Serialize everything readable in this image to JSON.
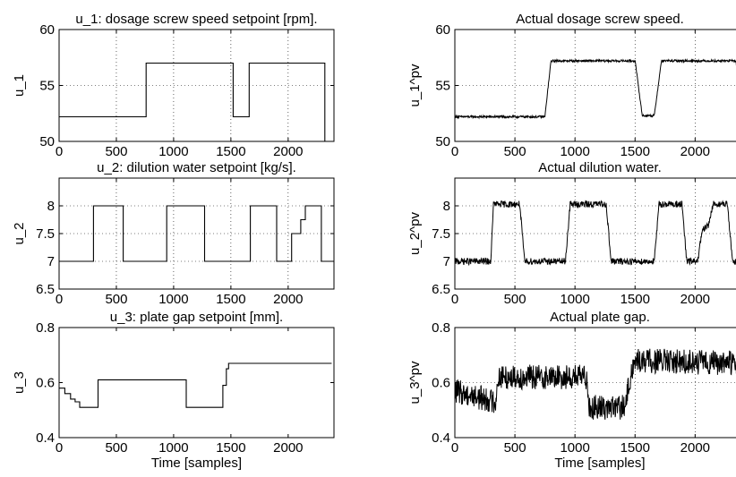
{
  "chart_data": [
    {
      "id": "u1",
      "type": "line",
      "style": "step",
      "title": "u_1: dosage screw speed setpoint [rpm].",
      "xlabel": "",
      "ylabel": "u_1",
      "xlim": [
        0,
        2400
      ],
      "ylim": [
        50,
        60
      ],
      "xticks": [
        0,
        500,
        1000,
        1500,
        2000
      ],
      "yticks": [
        50,
        55,
        60
      ],
      "grid": true,
      "series": [
        {
          "x": [
            0,
            760,
            760,
            1520,
            1520,
            1660,
            1660,
            2320,
            2320
          ],
          "y": [
            52.2,
            52.2,
            57,
            57,
            52.2,
            52.2,
            57,
            57,
            50
          ]
        }
      ]
    },
    {
      "id": "u1pv",
      "type": "line",
      "style": "noisy",
      "title": "Actual dosage screw speed.",
      "xlabel": "",
      "ylabel": "u_1^pv",
      "xlim": [
        0,
        2400
      ],
      "ylim": [
        50,
        60
      ],
      "xticks": [
        0,
        500,
        1000,
        1500,
        2000
      ],
      "yticks": [
        50,
        55,
        60
      ],
      "grid": true,
      "noise": 0.1,
      "series": [
        {
          "x": [
            0,
            750,
            800,
            1500,
            1560,
            1660,
            1720,
            2340,
            2400
          ],
          "y": [
            52.2,
            52.2,
            57.2,
            57.2,
            52.3,
            52.3,
            57.2,
            57.2,
            50.2
          ]
        }
      ]
    },
    {
      "id": "u2",
      "type": "line",
      "style": "step",
      "title": "u_2: dilution water setpoint [kg/s].",
      "xlabel": "",
      "ylabel": "u_2",
      "xlim": [
        0,
        2400
      ],
      "ylim": [
        6.5,
        8.5
      ],
      "xticks": [
        0,
        500,
        1000,
        1500,
        2000
      ],
      "yticks": [
        6.5,
        7,
        7.5,
        8
      ],
      "grid": true,
      "series": [
        {
          "x": [
            0,
            300,
            300,
            560,
            560,
            940,
            940,
            1270,
            1270,
            1670,
            1670,
            1900,
            1900,
            2030,
            2030,
            2110,
            2110,
            2150,
            2150,
            2290,
            2290,
            2400
          ],
          "y": [
            7,
            7,
            8,
            8,
            7,
            7,
            8,
            8,
            7,
            7,
            8,
            8,
            7,
            7,
            7.5,
            7.5,
            7.75,
            7.75,
            8,
            8,
            7,
            7
          ]
        }
      ]
    },
    {
      "id": "u2pv",
      "type": "line",
      "style": "noisy",
      "title": "Actual dilution water.",
      "xlabel": "",
      "ylabel": "u_2^pv",
      "xlim": [
        0,
        2400
      ],
      "ylim": [
        6.5,
        8.5
      ],
      "xticks": [
        0,
        500,
        1000,
        1500,
        2000
      ],
      "yticks": [
        6.5,
        7,
        7.5,
        8
      ],
      "grid": true,
      "noise": 0.06,
      "series": [
        {
          "x": [
            0,
            300,
            320,
            540,
            580,
            920,
            960,
            1260,
            1300,
            1660,
            1700,
            1890,
            1930,
            2020,
            2060,
            2110,
            2150,
            2270,
            2310,
            2400
          ],
          "y": [
            7,
            7,
            8.03,
            8.03,
            7,
            7,
            8.03,
            8.03,
            7,
            7,
            8.03,
            8.03,
            7,
            7,
            7.55,
            7.65,
            8.03,
            8.03,
            7,
            7
          ]
        }
      ]
    },
    {
      "id": "u3",
      "type": "line",
      "style": "step",
      "title": "u_3: plate gap setpoint [mm].",
      "xlabel": "Time [samples]",
      "ylabel": "u_3",
      "xlim": [
        0,
        2400
      ],
      "ylim": [
        0.4,
        0.8
      ],
      "xticks": [
        0,
        500,
        1000,
        1500,
        2000
      ],
      "yticks": [
        0.4,
        0.6,
        0.8
      ],
      "grid": false,
      "series": [
        {
          "x": [
            0,
            50,
            50,
            100,
            100,
            140,
            140,
            180,
            180,
            340,
            340,
            1110,
            1110,
            1430,
            1430,
            1460,
            1460,
            1480,
            1480,
            2380
          ],
          "y": [
            0.58,
            0.58,
            0.56,
            0.56,
            0.54,
            0.54,
            0.53,
            0.53,
            0.51,
            0.51,
            0.61,
            0.61,
            0.51,
            0.51,
            0.59,
            0.59,
            0.65,
            0.65,
            0.67,
            0.67
          ]
        }
      ]
    },
    {
      "id": "u3pv",
      "type": "line",
      "style": "noisy",
      "title": "Actual plate gap.",
      "xlabel": "Time [samples]",
      "ylabel": "u_3^pv",
      "xlim": [
        0,
        2400
      ],
      "ylim": [
        0.4,
        0.8
      ],
      "xticks": [
        0,
        500,
        1000,
        1500,
        2000
      ],
      "yticks": [
        0.4,
        0.6,
        0.8
      ],
      "grid": true,
      "noise": 0.045,
      "series": [
        {
          "x": [
            0,
            340,
            360,
            1100,
            1120,
            1420,
            1450,
            1500,
            2400
          ],
          "y": [
            0.57,
            0.53,
            0.62,
            0.62,
            0.51,
            0.51,
            0.6,
            0.68,
            0.67
          ]
        }
      ]
    }
  ]
}
